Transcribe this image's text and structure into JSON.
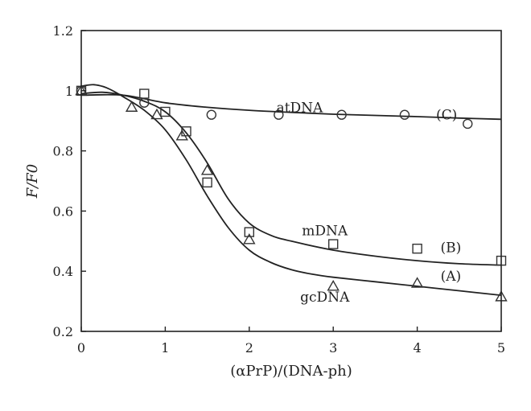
{
  "chart_data": {
    "type": "scatter",
    "xlabel": "(αPrP)/(DNA-ph)",
    "ylabel": "F/F0",
    "xlim": [
      0,
      5
    ],
    "ylim": [
      0.2,
      1.2
    ],
    "x_ticks": [
      0,
      1,
      2,
      3,
      4,
      5
    ],
    "y_ticks": [
      0.2,
      0.4,
      0.6,
      0.8,
      1.0,
      1.2
    ],
    "x_tick_labels": [
      "0",
      "1",
      "2",
      "3",
      "4",
      "5"
    ],
    "y_tick_labels": [
      "0.2",
      "0.4",
      "0.6",
      "0.8",
      "1",
      "1.2"
    ],
    "grid": false,
    "series": [
      {
        "name": "atDNA",
        "tag": "(C)",
        "marker": "circle",
        "x": [
          0,
          0.75,
          1.55,
          2.35,
          3.1,
          3.85,
          4.6
        ],
        "y": [
          1.0,
          0.96,
          0.92,
          0.92,
          0.92,
          0.92,
          0.89
        ],
        "fit_x": [
          0,
          0.5,
          1,
          1.5,
          2,
          2.5,
          3,
          3.5,
          4,
          4.5,
          5
        ],
        "fit_y": [
          0.985,
          0.985,
          0.96,
          0.945,
          0.935,
          0.928,
          0.922,
          0.918,
          0.914,
          0.909,
          0.905
        ]
      },
      {
        "name": "mDNA",
        "tag": "(B)",
        "marker": "square",
        "x": [
          0,
          0.75,
          1.0,
          1.25,
          1.5,
          2.0,
          3.0,
          4.0,
          5.0
        ],
        "y": [
          1.0,
          0.99,
          0.93,
          0.865,
          0.695,
          0.53,
          0.49,
          0.475,
          0.435
        ],
        "fit_x": [
          0,
          0.25,
          0.5,
          0.75,
          1.0,
          1.25,
          1.5,
          1.75,
          2.0,
          2.25,
          2.5,
          3.0,
          3.5,
          4.0,
          4.5,
          5.0
        ],
        "fit_y": [
          0.99,
          0.995,
          0.985,
          0.965,
          0.93,
          0.86,
          0.76,
          0.64,
          0.56,
          0.52,
          0.5,
          0.47,
          0.45,
          0.435,
          0.425,
          0.42
        ]
      },
      {
        "name": "gcDNA",
        "tag": "(A)",
        "marker": "triangle",
        "x": [
          0,
          0.6,
          0.9,
          1.2,
          1.5,
          2.0,
          3.0,
          4.0,
          5.0
        ],
        "y": [
          1.0,
          0.945,
          0.92,
          0.85,
          0.735,
          0.505,
          0.35,
          0.36,
          0.315
        ],
        "fit_x": [
          0,
          0.15,
          0.3,
          0.5,
          0.75,
          1.0,
          1.25,
          1.5,
          1.75,
          2.0,
          2.25,
          2.5,
          2.75,
          3.0,
          3.5,
          4.0,
          4.5,
          5.0
        ],
        "fit_y": [
          1.015,
          1.02,
          1.01,
          0.98,
          0.935,
          0.87,
          0.77,
          0.65,
          0.545,
          0.47,
          0.43,
          0.405,
          0.39,
          0.38,
          0.365,
          0.35,
          0.335,
          0.32
        ]
      }
    ],
    "annotations": [
      {
        "series": "atDNA",
        "text": "atDNA",
        "x": 2.6,
        "y": 0.945
      },
      {
        "series": "atDNA",
        "text": "(C)",
        "x": 4.35,
        "y": 0.92
      },
      {
        "series": "mDNA",
        "text": "mDNA",
        "x": 2.9,
        "y": 0.535
      },
      {
        "series": "mDNA",
        "text": "(B)",
        "x": 4.4,
        "y": 0.48
      },
      {
        "series": "gcDNA",
        "text": "(A)",
        "x": 4.4,
        "y": 0.385
      },
      {
        "series": "gcDNA",
        "text": "gcDNA",
        "x": 2.9,
        "y": 0.315
      }
    ]
  }
}
